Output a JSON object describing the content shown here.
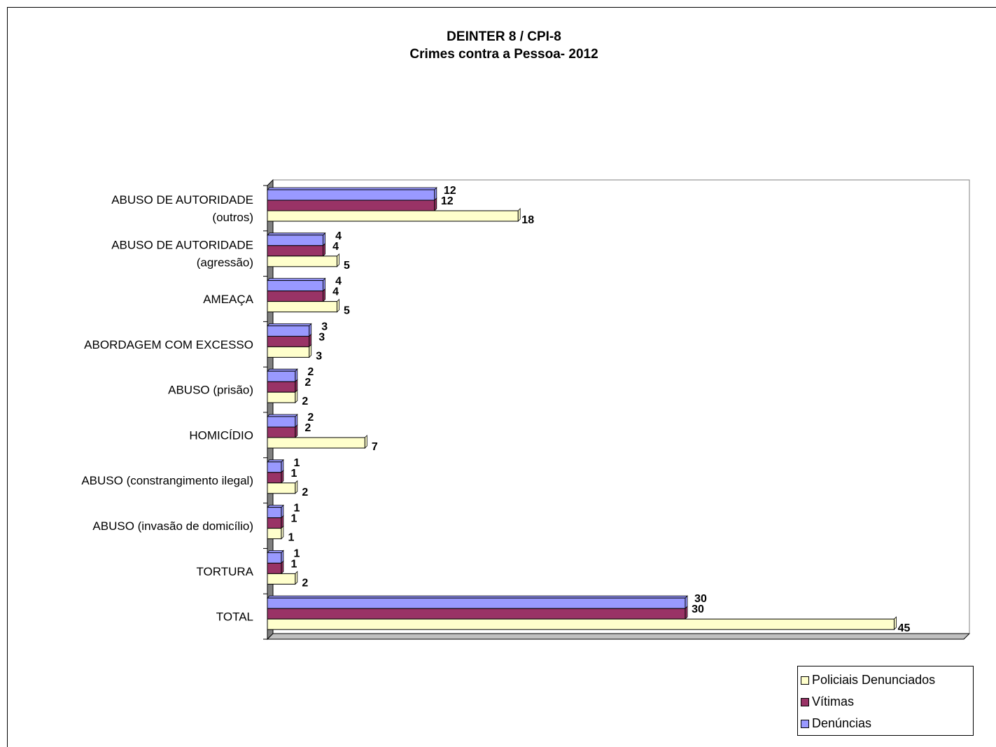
{
  "chart_data": {
    "type": "bar",
    "orientation": "horizontal",
    "title": [
      "DEINTER 8 / CPI-8",
      "Crimes contra a Pessoa- 2012"
    ],
    "categories": [
      "ABUSO DE AUTORIDADE (outros)",
      "ABUSO DE AUTORIDADE (agressão)",
      "AMEAÇA",
      "ABORDAGEM COM EXCESSO",
      "ABUSO (prisão)",
      "HOMICÍDIO",
      "ABUSO (constrangimento ilegal)",
      "ABUSO (invasão de domicílio)",
      "TORTURA",
      "TOTAL"
    ],
    "category_lines": [
      [
        "ABUSO DE AUTORIDADE",
        "(outros)"
      ],
      [
        "ABUSO DE AUTORIDADE",
        "(agressão)"
      ],
      [
        "AMEAÇA"
      ],
      [
        "ABORDAGEM COM EXCESSO"
      ],
      [
        "ABUSO (prisão)"
      ],
      [
        "HOMICÍDIO"
      ],
      [
        "ABUSO (constrangimento ilegal)"
      ],
      [
        "ABUSO (invasão de domicílio)"
      ],
      [
        "TORTURA"
      ],
      [
        "TOTAL"
      ]
    ],
    "series": [
      {
        "name": "Denúncias",
        "color": "#9999ff",
        "values": [
          12,
          4,
          4,
          3,
          2,
          2,
          1,
          1,
          1,
          30
        ]
      },
      {
        "name": "Vítimas",
        "color": "#993366",
        "values": [
          12,
          4,
          4,
          3,
          2,
          2,
          1,
          1,
          1,
          30
        ]
      },
      {
        "name": "Policiais Denunciados",
        "color": "#ffffcc",
        "values": [
          18,
          5,
          5,
          3,
          2,
          7,
          2,
          1,
          2,
          45
        ]
      }
    ],
    "xlim": [
      0,
      50
    ],
    "grid": false,
    "legend_position": "bottom-right",
    "legend_order": [
      "Policiais Denunciados",
      "Vítimas",
      "Denúncias"
    ]
  }
}
